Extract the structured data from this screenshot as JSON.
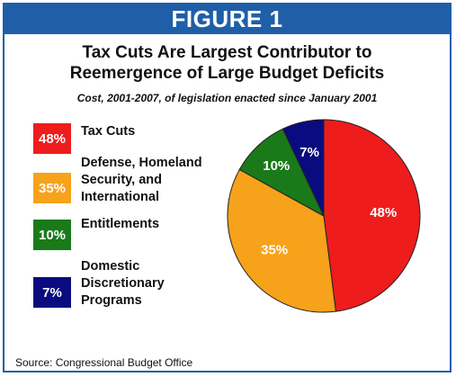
{
  "figure_label": "FIGURE 1",
  "title_line1": "Tax Cuts Are Largest Contributor to",
  "title_line2": "Reemergence of Large Budget Deficits",
  "subtitle": "Cost, 2001-2007, of legislation enacted since January 2001",
  "source": "Source: Congressional Budget Office",
  "chart_data": {
    "type": "pie",
    "title": "Tax Cuts Are Largest Contributor to Reemergence of Large Budget Deficits",
    "subtitle": "Cost, 2001-2007, of legislation enacted since January 2001",
    "legend_placement": "left",
    "slices": [
      {
        "label": "Tax Cuts",
        "value": 48,
        "display": "48%",
        "color": "#ee1c1c"
      },
      {
        "label": "Defense, Homeland\nSecurity, and\nInternational",
        "value": 35,
        "display": "35%",
        "color": "#f7a21b"
      },
      {
        "label": "Entitlements",
        "value": 10,
        "display": "10%",
        "color": "#1a7a1a"
      },
      {
        "label": "Domestic\nDiscretionary\nPrograms",
        "value": 7,
        "display": "7%",
        "color": "#0b0b80"
      }
    ]
  }
}
